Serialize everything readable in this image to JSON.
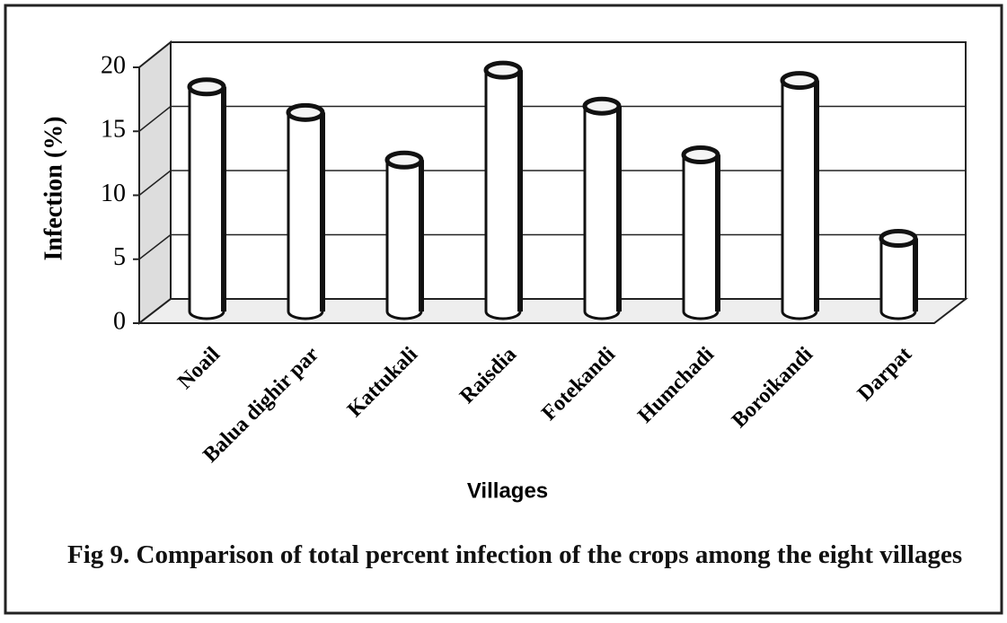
{
  "chart_data": {
    "type": "bar",
    "style": "3d-cylinder",
    "title": "Fig 9. Comparison of total percent infection of the crops among the eight villages",
    "x_label": "Villages",
    "y_label": "Infection (%)",
    "categories": [
      "Noail",
      "Balua dighir par",
      "Kattukali",
      "Raisdia",
      "Fotekandi",
      "Humchadi",
      "Boroikandi",
      "Darpat"
    ],
    "values": [
      17.5,
      15.5,
      11.8,
      18.8,
      16,
      12.2,
      18,
      5.7
    ],
    "color": "#ffffff",
    "ylim": [
      0,
      20
    ],
    "yticks": [
      0,
      5,
      10,
      15,
      20
    ],
    "grid": true
  }
}
